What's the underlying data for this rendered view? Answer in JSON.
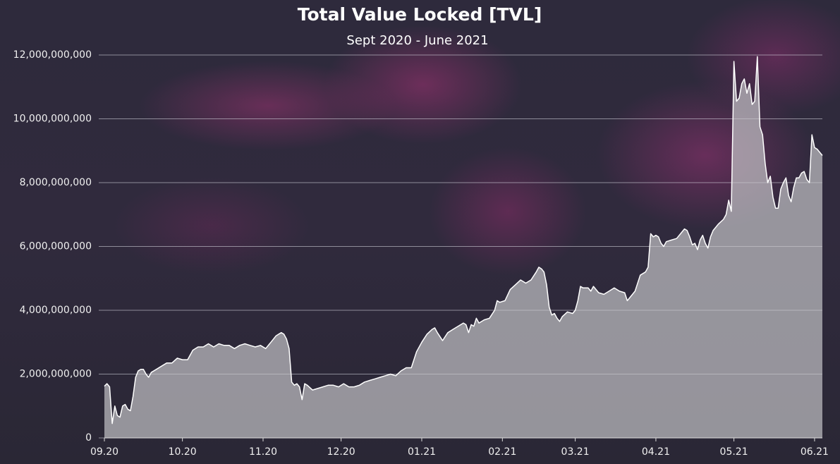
{
  "chart_data": {
    "type": "area",
    "title": "Total Value Locked [TVL]",
    "subtitle": "Sept 2020 - June 2021",
    "color": "#ffffff",
    "fill": "#c8c8cc",
    "grid": true,
    "xlim": [
      0,
      276
    ],
    "xticks": [
      {
        "value": 0,
        "label": "09.20"
      },
      {
        "value": 30,
        "label": "10.20"
      },
      {
        "value": 61,
        "label": "11.20"
      },
      {
        "value": 91,
        "label": "12.20"
      },
      {
        "value": 122,
        "label": "01.21"
      },
      {
        "value": 153,
        "label": "02.21"
      },
      {
        "value": 181,
        "label": "03.21"
      },
      {
        "value": 212,
        "label": "04.21"
      },
      {
        "value": 242,
        "label": "05.21"
      },
      {
        "value": 273,
        "label": "06.21"
      }
    ],
    "ylim": [
      0,
      12000000000
    ],
    "yticks": [
      0,
      {
        "value": 2000000000,
        "label": "2,000,000,000"
      },
      {
        "value": 4000000000,
        "label": "4,000,000,000"
      },
      {
        "value": 6000000000,
        "label": "6,000,000,000"
      },
      {
        "value": 8000000000,
        "label": "8,000,000,000"
      },
      {
        "value": 10000000000,
        "label": "10,000,000,000"
      },
      {
        "value": 12000000000,
        "label": "12,000,000,000"
      }
    ],
    "x": [
      0,
      1,
      2,
      3,
      4,
      5,
      6,
      7,
      8,
      9,
      10,
      11,
      12,
      13,
      14,
      15,
      16,
      17,
      18,
      20,
      22,
      24,
      26,
      28,
      30,
      32,
      34,
      36,
      38,
      40,
      42,
      44,
      46,
      48,
      50,
      52,
      54,
      56,
      58,
      60,
      62,
      64,
      66,
      67,
      68,
      69,
      70,
      71,
      72,
      73,
      74,
      75,
      76,
      77,
      78,
      80,
      82,
      84,
      86,
      88,
      90,
      92,
      94,
      96,
      98,
      100,
      102,
      104,
      106,
      108,
      110,
      112,
      114,
      116,
      118,
      119,
      120,
      122,
      124,
      126,
      127,
      128,
      130,
      132,
      134,
      136,
      138,
      139,
      140,
      141,
      142,
      143,
      144,
      146,
      148,
      150,
      151,
      152,
      154,
      156,
      158,
      160,
      162,
      164,
      166,
      167,
      168,
      169,
      170,
      171,
      172,
      173,
      174,
      175,
      176,
      178,
      180,
      181,
      182,
      183,
      184,
      186,
      187,
      188,
      190,
      192,
      194,
      196,
      198,
      200,
      201,
      202,
      204,
      206,
      208,
      209,
      210,
      211,
      212,
      213,
      214,
      215,
      216,
      218,
      220,
      222,
      223,
      224,
      225,
      226,
      227,
      228,
      229,
      230,
      231,
      232,
      233,
      234,
      236,
      238,
      239,
      240,
      241,
      242,
      243,
      244,
      245,
      246,
      247,
      248,
      249,
      250,
      251,
      252,
      253,
      254,
      255,
      256,
      257,
      258,
      259,
      260,
      261,
      262,
      263,
      264,
      265,
      266,
      267,
      268,
      269,
      270,
      271,
      272,
      273,
      274,
      275,
      276
    ],
    "values": [
      1620000000,
      1700000000,
      1600000000,
      450000000,
      1000000000,
      700000000,
      650000000,
      1000000000,
      1050000000,
      900000000,
      850000000,
      1300000000,
      1900000000,
      2100000000,
      2150000000,
      2150000000,
      2000000000,
      1900000000,
      2050000000,
      2150000000,
      2250000000,
      2350000000,
      2350000000,
      2500000000,
      2450000000,
      2450000000,
      2750000000,
      2850000000,
      2850000000,
      2950000000,
      2850000000,
      2950000000,
      2900000000,
      2900000000,
      2800000000,
      2900000000,
      2950000000,
      2900000000,
      2850000000,
      2900000000,
      2800000000,
      3000000000,
      3200000000,
      3250000000,
      3300000000,
      3250000000,
      3100000000,
      2800000000,
      1750000000,
      1650000000,
      1700000000,
      1600000000,
      1200000000,
      1700000000,
      1650000000,
      1500000000,
      1550000000,
      1600000000,
      1650000000,
      1650000000,
      1600000000,
      1700000000,
      1600000000,
      1600000000,
      1650000000,
      1750000000,
      1800000000,
      1850000000,
      1900000000,
      1950000000,
      2000000000,
      1950000000,
      2100000000,
      2200000000,
      2200000000,
      2450000000,
      2700000000,
      3000000000,
      3250000000,
      3400000000,
      3450000000,
      3300000000,
      3050000000,
      3300000000,
      3400000000,
      3500000000,
      3600000000,
      3550000000,
      3300000000,
      3550000000,
      3500000000,
      3750000000,
      3600000000,
      3700000000,
      3750000000,
      4000000000,
      4300000000,
      4250000000,
      4300000000,
      4650000000,
      4800000000,
      4950000000,
      4850000000,
      4950000000,
      5200000000,
      5350000000,
      5300000000,
      5200000000,
      4800000000,
      4100000000,
      3850000000,
      3900000000,
      3750000000,
      3650000000,
      3800000000,
      3950000000,
      3900000000,
      4000000000,
      4300000000,
      4750000000,
      4700000000,
      4700000000,
      4600000000,
      4750000000,
      4550000000,
      4500000000,
      4600000000,
      4700000000,
      4600000000,
      4550000000,
      4300000000,
      4400000000,
      4600000000,
      5100000000,
      5200000000,
      5350000000,
      6400000000,
      6300000000,
      6350000000,
      6300000000,
      6100000000,
      6000000000,
      6150000000,
      6200000000,
      6250000000,
      6450000000,
      6550000000,
      6500000000,
      6300000000,
      6050000000,
      6100000000,
      5900000000,
      6200000000,
      6350000000,
      6100000000,
      5950000000,
      6300000000,
      6500000000,
      6700000000,
      6850000000,
      7000000000,
      7450000000,
      7100000000,
      11800000000,
      10550000000,
      10650000000,
      11100000000,
      11250000000,
      10800000000,
      11100000000,
      10450000000,
      10550000000,
      11950000000,
      9750000000,
      9500000000,
      8600000000,
      8000000000,
      8200000000,
      7550000000,
      7200000000,
      7200000000,
      7800000000,
      8000000000,
      8150000000,
      7600000000,
      7400000000,
      7850000000,
      8150000000,
      8150000000,
      8300000000,
      8350000000,
      8100000000,
      8000000000,
      9500000000,
      9100000000,
      9050000000,
      8950000000,
      8850000000
    ]
  }
}
